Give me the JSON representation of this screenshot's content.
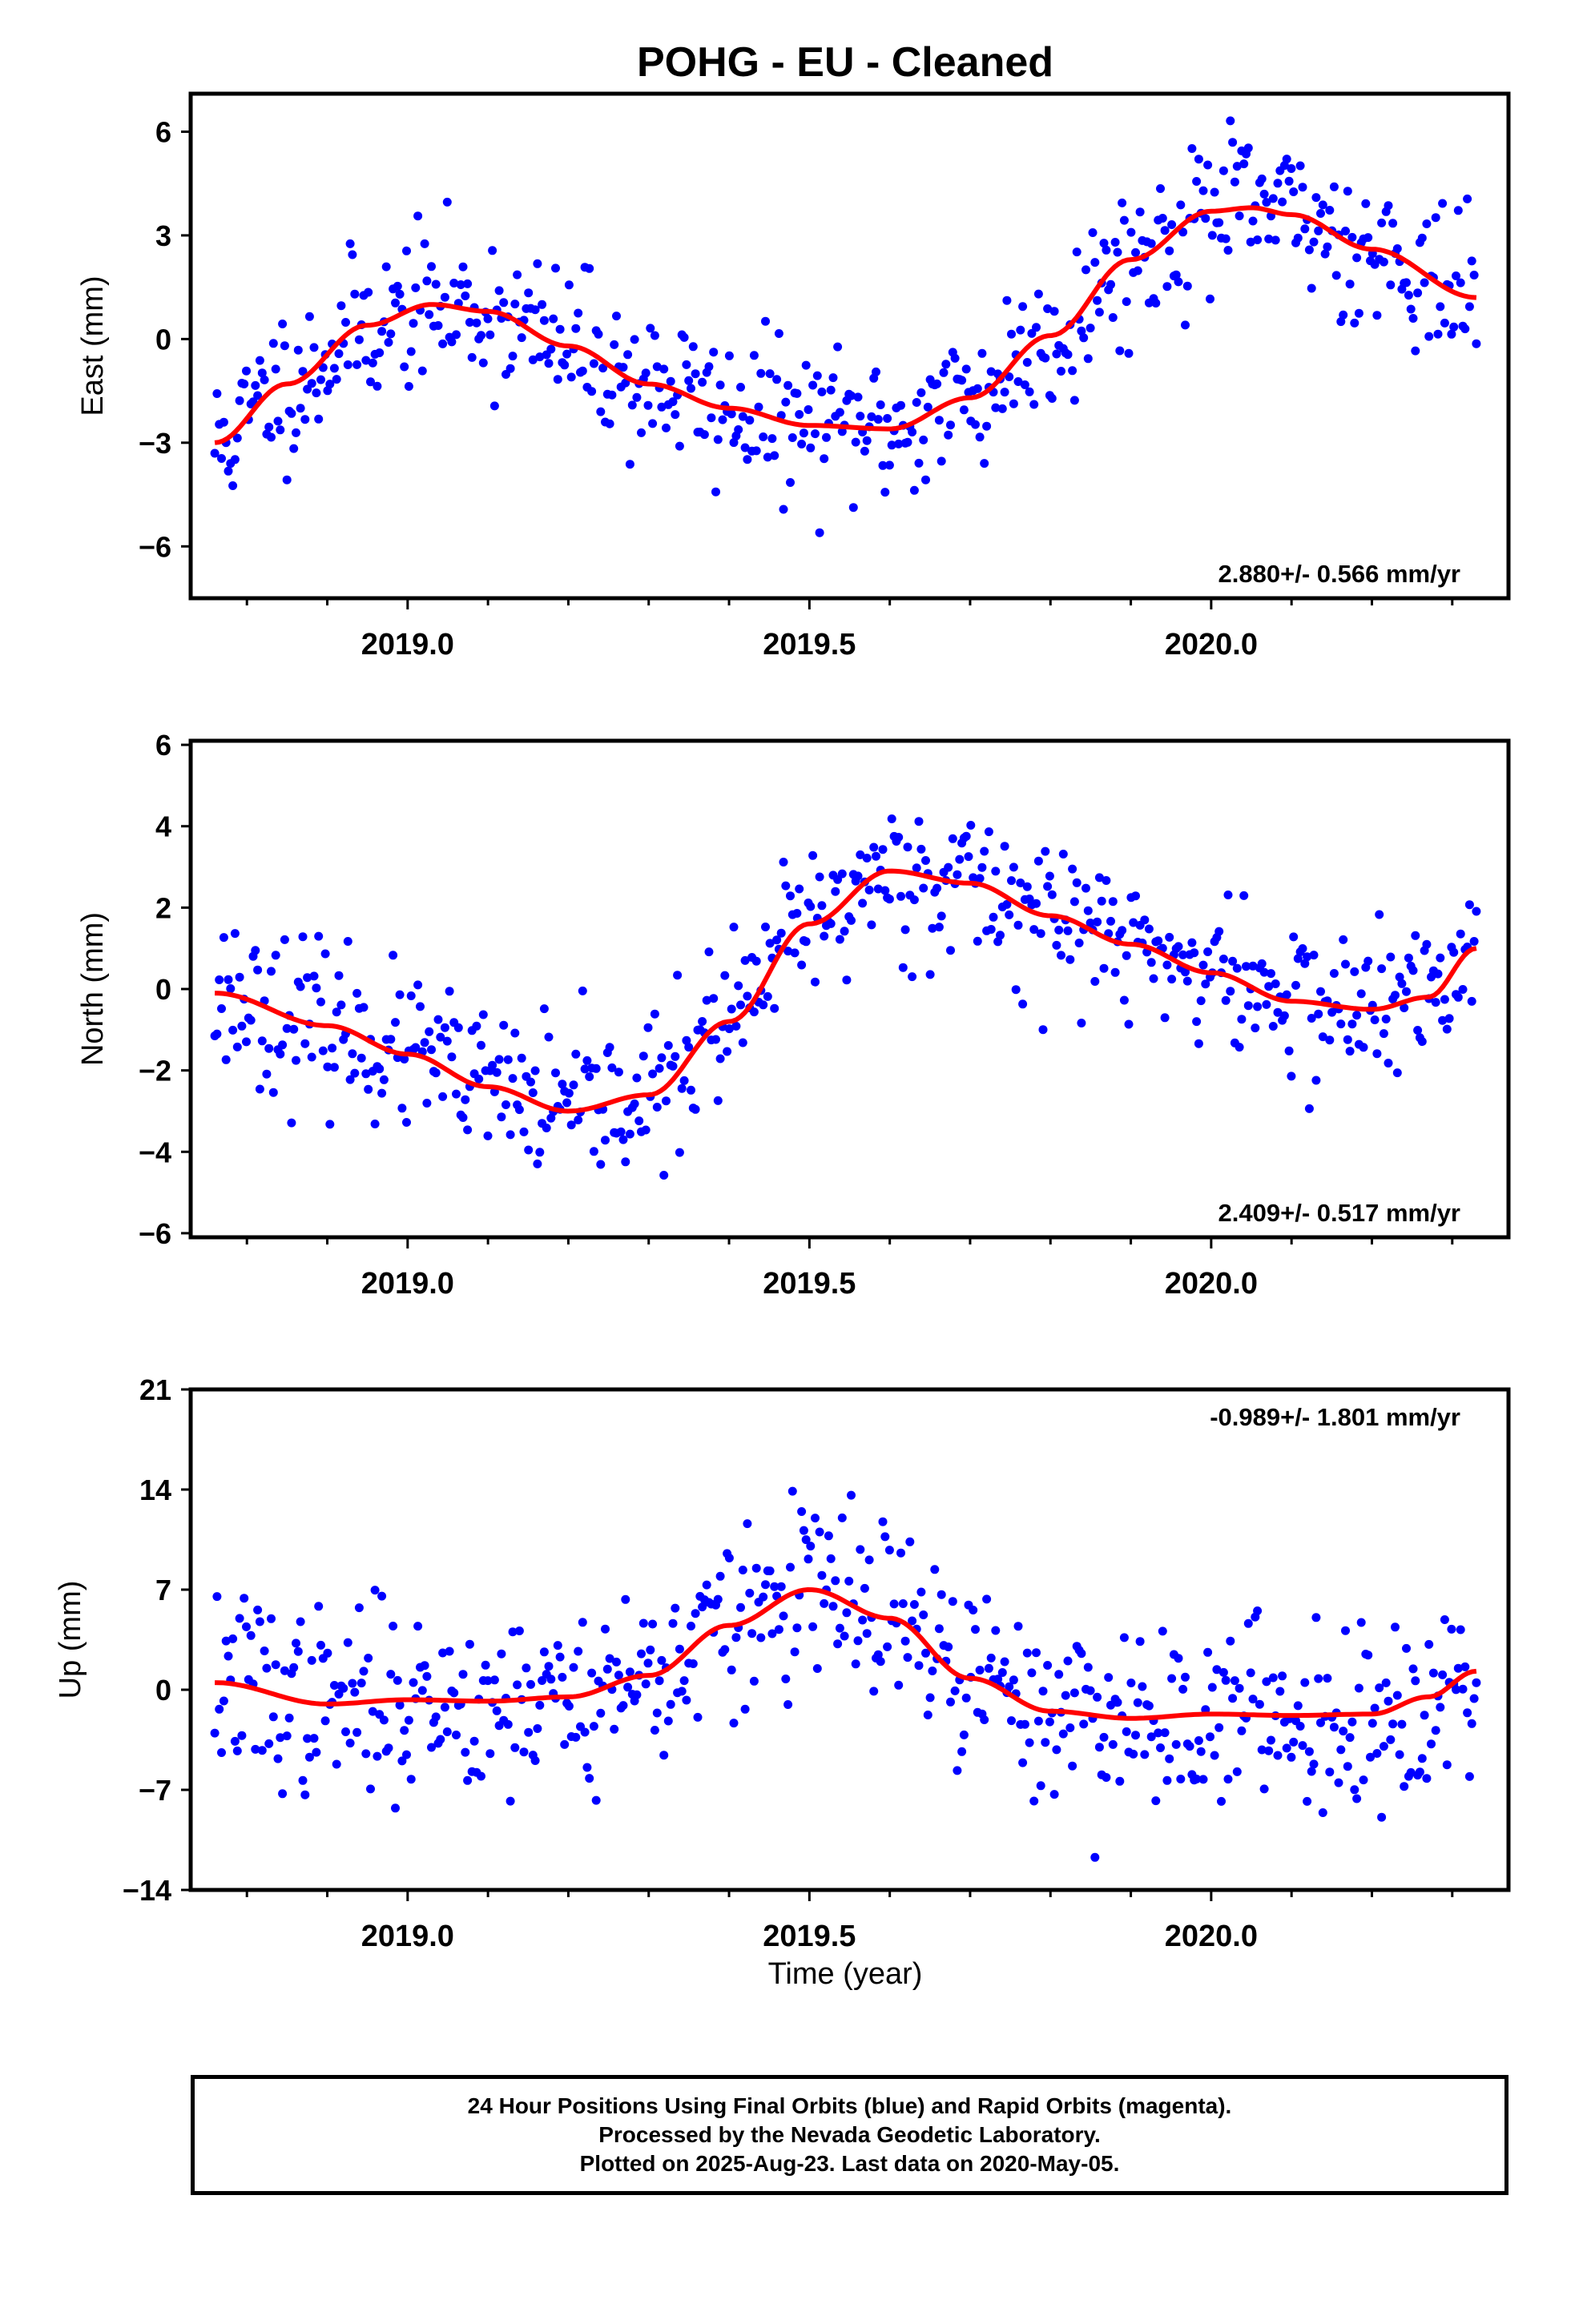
{
  "title": "POHG  - EU - Cleaned",
  "xlabel": "Time (year)",
  "x_ticks": [
    2019.0,
    2019.5,
    2020.0
  ],
  "x_tick_labels": [
    "2019.0",
    "2019.5",
    "2020.0"
  ],
  "colors": {
    "points": "#0000ff",
    "fit": "#ff0000",
    "frame": "#000000"
  },
  "footer": {
    "line1": "24 Hour Positions Using Final Orbits (blue) and Rapid Orbits (magenta).",
    "line2": "Processed by the Nevada Geodetic Laboratory.",
    "line3": "Plotted on 2025-Aug-23. Last data on 2020-May-05."
  },
  "chart_data": [
    {
      "type": "scatter",
      "panel": "east",
      "ylabel": "East (mm)",
      "xlim": [
        2018.73,
        2020.37
      ],
      "ylim": [
        -7.5,
        7.1
      ],
      "y_ticks": [
        -6,
        -3,
        0,
        3,
        6
      ],
      "y_tick_labels": [
        "−6",
        "−3",
        "0",
        "3",
        "6"
      ],
      "rate_label": "2.880+/- 0.566 mm/yr",
      "rate_position": "bottom-right",
      "fit": {
        "name": "",
        "x": [
          2018.76,
          2018.85,
          2018.95,
          2019.03,
          2019.1,
          2019.2,
          2019.3,
          2019.4,
          2019.5,
          2019.6,
          2019.7,
          2019.8,
          2019.9,
          2020.0,
          2020.05,
          2020.1,
          2020.2,
          2020.33
        ],
        "y": [
          -3.0,
          -1.3,
          0.4,
          1.0,
          0.8,
          -0.2,
          -1.3,
          -2.0,
          -2.5,
          -2.6,
          -1.7,
          0.1,
          2.3,
          3.7,
          3.8,
          3.6,
          2.6,
          1.2
        ]
      },
      "points_seed": 11,
      "points_noise": 1.1,
      "points_n": 560
    },
    {
      "type": "scatter",
      "panel": "north",
      "ylabel": "North (mm)",
      "xlim": [
        2018.73,
        2020.37
      ],
      "ylim": [
        -6.1,
        6.1
      ],
      "y_ticks": [
        -6,
        -4,
        -2,
        0,
        2,
        4,
        6
      ],
      "y_tick_labels": [
        "−6",
        "−4",
        "−2",
        "0",
        "2",
        "4",
        "6"
      ],
      "rate_label": "2.409+/- 0.517 mm/yr",
      "rate_position": "bottom-right",
      "fit": {
        "name": "",
        "x": [
          2018.76,
          2018.9,
          2019.0,
          2019.1,
          2019.2,
          2019.3,
          2019.4,
          2019.5,
          2019.6,
          2019.7,
          2019.8,
          2019.9,
          2020.0,
          2020.1,
          2020.2,
          2020.27,
          2020.33
        ],
        "y": [
          -0.1,
          -0.9,
          -1.6,
          -2.4,
          -3.0,
          -2.6,
          -0.8,
          1.6,
          2.9,
          2.6,
          1.8,
          1.1,
          0.4,
          -0.3,
          -0.5,
          -0.2,
          1.0
        ]
      },
      "points_seed": 23,
      "points_noise": 0.95,
      "points_n": 560
    },
    {
      "type": "scatter",
      "panel": "up",
      "ylabel": "Up (mm)",
      "xlim": [
        2018.73,
        2020.37
      ],
      "ylim": [
        -14,
        21
      ],
      "y_ticks": [
        -14,
        -7,
        0,
        7,
        14,
        21
      ],
      "y_tick_labels": [
        "−14",
        "−7",
        "0",
        "7",
        "14",
        "21"
      ],
      "rate_label": "-0.989+/- 1.801 mm/yr",
      "rate_position": "top-right",
      "fit": {
        "name": "",
        "x": [
          2018.76,
          2018.9,
          2019.0,
          2019.1,
          2019.2,
          2019.3,
          2019.4,
          2019.5,
          2019.6,
          2019.7,
          2019.8,
          2019.9,
          2020.0,
          2020.1,
          2020.2,
          2020.27,
          2020.33
        ],
        "y": [
          0.5,
          -1.0,
          -0.7,
          -0.8,
          -0.5,
          1.0,
          4.5,
          7.0,
          5.0,
          0.8,
          -1.5,
          -2.0,
          -1.7,
          -1.8,
          -1.7,
          -0.5,
          1.3
        ]
      },
      "points_seed": 37,
      "points_noise": 3.2,
      "points_n": 560
    }
  ]
}
